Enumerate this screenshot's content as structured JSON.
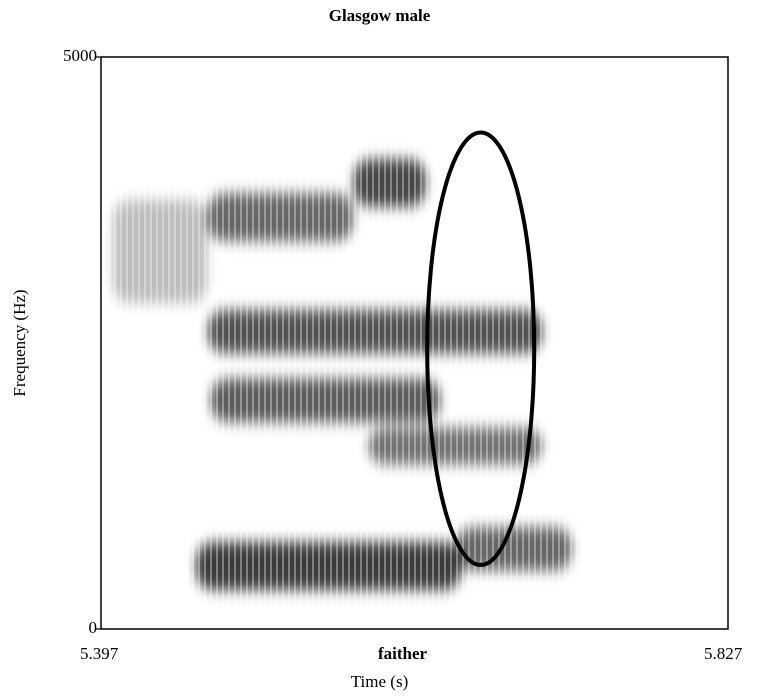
{
  "chart_data": {
    "type": "heatmap",
    "subtype": "spectrogram",
    "title": "Glasgow male",
    "xlabel": "Time (s)",
    "ylabel": "Frequency (Hz)",
    "xlim": [
      5.397,
      5.827
    ],
    "ylim": [
      0,
      5000
    ],
    "x_ticks": [
      "5.397",
      "5.827"
    ],
    "y_ticks": [
      "5000",
      "0"
    ],
    "annotation_word": "faither",
    "colormap": "greyscale",
    "formant_bands": [
      {
        "t_start": 5.462,
        "t_end": 5.644,
        "f_center": 550,
        "f_width": 420,
        "darkness": 0.9
      },
      {
        "t_start": 5.64,
        "t_end": 5.72,
        "f_center": 700,
        "f_width": 380,
        "darkness": 0.7
      },
      {
        "t_start": 5.472,
        "t_end": 5.63,
        "f_center": 2000,
        "f_width": 380,
        "darkness": 0.75
      },
      {
        "t_start": 5.58,
        "t_end": 5.7,
        "f_center": 1600,
        "f_width": 320,
        "darkness": 0.65
      },
      {
        "t_start": 5.47,
        "t_end": 5.7,
        "f_center": 2600,
        "f_width": 380,
        "darkness": 0.8
      },
      {
        "t_start": 5.47,
        "t_end": 5.57,
        "f_center": 3600,
        "f_width": 420,
        "darkness": 0.7
      },
      {
        "t_start": 5.57,
        "t_end": 5.62,
        "f_center": 3900,
        "f_width": 420,
        "darkness": 0.85
      },
      {
        "t_start": 5.405,
        "t_end": 5.47,
        "f_center": 3300,
        "f_width": 900,
        "darkness": 0.3
      }
    ],
    "highlight_ellipse": {
      "t_center": 5.6574,
      "f_center": 2450,
      "t_radius": 0.0367,
      "f_radius": 1890
    },
    "grid": false,
    "legend": "none"
  }
}
